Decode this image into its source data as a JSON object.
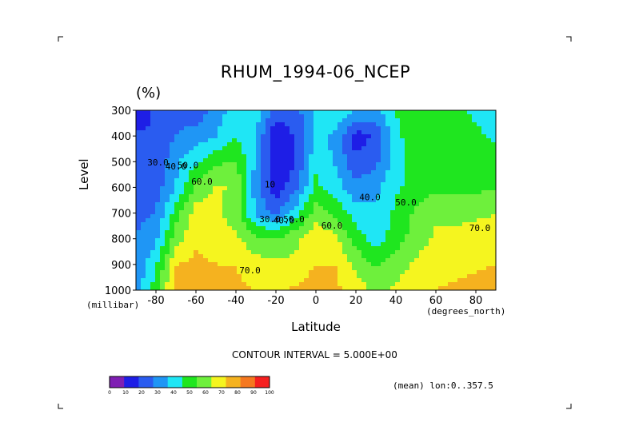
{
  "chart_data": {
    "type": "heatmap",
    "title": "RHUM_1994-06_NCEP",
    "unit_label": "(%)",
    "xlabel": "Latitude",
    "ylabel": "Level",
    "x_unit": "(degrees_north)",
    "y_unit": "(millibar)",
    "xlim": [
      -90,
      90
    ],
    "ylim": [
      1000,
      300
    ],
    "x_ticks": [
      -80,
      -60,
      -40,
      -20,
      0,
      20,
      40,
      60,
      80
    ],
    "x_tick_labels": [
      "-80",
      "-60",
      "-40",
      "-20",
      "0",
      "20",
      "40",
      "60",
      "80"
    ],
    "y_ticks": [
      300,
      400,
      500,
      600,
      700,
      800,
      900,
      1000
    ],
    "y_tick_labels": [
      "300",
      "400",
      "500",
      "600",
      "700",
      "800",
      "900",
      "1000"
    ],
    "contour_interval_text": "CONTOUR INTERVAL = 5.000E+00",
    "footer_text": "(mean) lon:0..357.5",
    "colorbar": {
      "bounds": [
        "0",
        "10",
        "20",
        "30",
        "40",
        "50",
        "60",
        "70",
        "80",
        "90",
        "100"
      ],
      "colors": [
        "#7f1fb3",
        "#1e1ee6",
        "#2a5cf0",
        "#1f96f5",
        "#1fe6f5",
        "#1fe61f",
        "#6ef03c",
        "#f5f51f",
        "#f5b21f",
        "#f5781f",
        "#f51f1f"
      ]
    },
    "latitudes": [
      -90,
      -80,
      -70,
      -60,
      -50,
      -40,
      -30,
      -20,
      -10,
      0,
      10,
      20,
      30,
      40,
      50,
      60,
      70,
      80,
      90
    ],
    "levels": [
      300,
      400,
      500,
      600,
      700,
      800,
      900,
      1000
    ],
    "values": [
      [
        8,
        25,
        28,
        22,
        35,
        45,
        45,
        25,
        25,
        45,
        48,
        40,
        38,
        50,
        58,
        60,
        52,
        48,
        45
      ],
      [
        22,
        20,
        30,
        35,
        40,
        50,
        40,
        12,
        22,
        42,
        38,
        15,
        22,
        48,
        55,
        58,
        55,
        52,
        48
      ],
      [
        28,
        22,
        38,
        48,
        58,
        60,
        38,
        10,
        20,
        48,
        38,
        22,
        28,
        45,
        55,
        58,
        55,
        55,
        55
      ],
      [
        28,
        25,
        40,
        62,
        72,
        68,
        35,
        12,
        28,
        52,
        45,
        32,
        38,
        48,
        55,
        58,
        58,
        58,
        58
      ],
      [
        28,
        30,
        55,
        75,
        72,
        65,
        38,
        28,
        45,
        65,
        58,
        45,
        42,
        52,
        62,
        68,
        66,
        68,
        70
      ],
      [
        30,
        38,
        65,
        78,
        75,
        72,
        62,
        60,
        68,
        78,
        72,
        55,
        45,
        55,
        65,
        72,
        74,
        75,
        74
      ],
      [
        32,
        48,
        80,
        82,
        80,
        80,
        75,
        72,
        72,
        80,
        80,
        68,
        58,
        65,
        72,
        75,
        76,
        78,
        80
      ],
      [
        34,
        55,
        85,
        88,
        84,
        82,
        80,
        78,
        82,
        86,
        82,
        75,
        68,
        72,
        78,
        80,
        82,
        85,
        90
      ]
    ],
    "contour_labels": [
      {
        "text": "30.0",
        "lat": -79,
        "level": 515
      },
      {
        "text": "40.0",
        "lat": -70,
        "level": 530
      },
      {
        "text": "50.0",
        "lat": -64,
        "level": 525
      },
      {
        "text": "60.0",
        "lat": -57,
        "level": 590
      },
      {
        "text": "10",
        "lat": -23,
        "level": 600
      },
      {
        "text": "30.0",
        "lat": -23,
        "level": 735
      },
      {
        "text": "40.0",
        "lat": -16,
        "level": 740
      },
      {
        "text": "50.0",
        "lat": -11,
        "level": 735
      },
      {
        "text": "70.0",
        "lat": -33,
        "level": 935
      },
      {
        "text": "60.0",
        "lat": 8,
        "level": 760
      },
      {
        "text": "40.0",
        "lat": 27,
        "level": 650
      },
      {
        "text": "50.0",
        "lat": 45,
        "level": 670
      },
      {
        "text": "70.0",
        "lat": 82,
        "level": 770
      }
    ]
  }
}
